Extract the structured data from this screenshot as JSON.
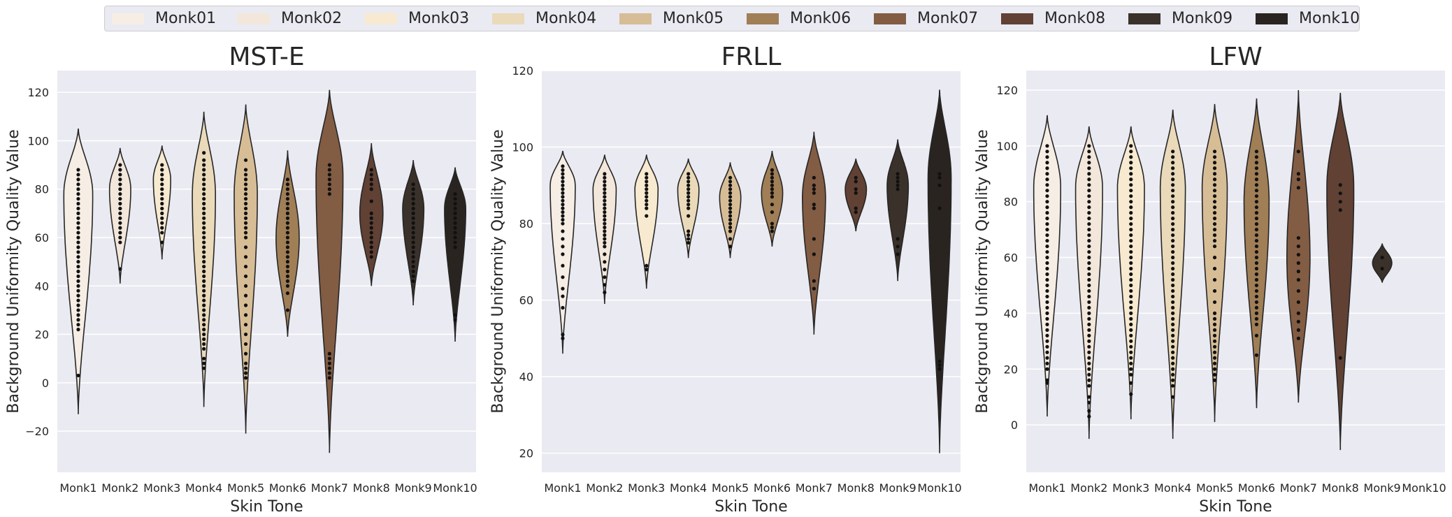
{
  "legend": {
    "items": [
      {
        "label": "Monk01",
        "color": "#f6ede4"
      },
      {
        "label": "Monk02",
        "color": "#f3e7db"
      },
      {
        "label": "Monk03",
        "color": "#f7ead0"
      },
      {
        "label": "Monk04",
        "color": "#eadaba"
      },
      {
        "label": "Monk05",
        "color": "#d7bd96"
      },
      {
        "label": "Monk06",
        "color": "#a07e56"
      },
      {
        "label": "Monk07",
        "color": "#825c43"
      },
      {
        "label": "Monk08",
        "color": "#604134"
      },
      {
        "label": "Monk09",
        "color": "#3a312a"
      },
      {
        "label": "Monk10",
        "color": "#292420"
      }
    ]
  },
  "chart_data": [
    {
      "type": "violin",
      "title": "MST-E",
      "xlabel": "Skin Tone",
      "ylabel": "Background Uniformity Quality Value",
      "categories": [
        "Monk1",
        "Monk2",
        "Monk3",
        "Monk4",
        "Monk5",
        "Monk6",
        "Monk7",
        "Monk8",
        "Monk9",
        "Monk10"
      ],
      "ylim": [
        -37,
        129
      ],
      "yticks": [
        -20,
        0,
        20,
        40,
        60,
        80,
        100,
        120
      ],
      "ytick_labels": [
        "−20",
        "0",
        "20",
        "40",
        "60",
        "80",
        "100",
        "120"
      ],
      "grid": true,
      "violins": [
        {
          "min": -13,
          "max": 105,
          "mode": 78,
          "spread": 0.75,
          "points": [
            3,
            22,
            24,
            26,
            28,
            30,
            32,
            34,
            36,
            38,
            40,
            42,
            44,
            46,
            48,
            50,
            52,
            54,
            56,
            58,
            60,
            62,
            64,
            66,
            68,
            70,
            72,
            74,
            76,
            78,
            80,
            82,
            84,
            86,
            88
          ]
        },
        {
          "min": 41,
          "max": 97,
          "mode": 80,
          "spread": 0.55,
          "points": [
            47,
            58,
            60,
            62,
            64,
            66,
            68,
            70,
            72,
            74,
            76,
            78,
            80,
            82,
            84,
            86,
            88,
            90
          ]
        },
        {
          "min": 51,
          "max": 98,
          "mode": 84,
          "spread": 0.45,
          "points": [
            58,
            62,
            64,
            66,
            68,
            70,
            72,
            74,
            76,
            78,
            80,
            82,
            84,
            86,
            88,
            90
          ]
        },
        {
          "min": -10,
          "max": 112,
          "mode": 78,
          "spread": 0.6,
          "points": [
            6,
            8,
            10,
            14,
            16,
            18,
            20,
            22,
            24,
            26,
            28,
            30,
            32,
            34,
            36,
            38,
            40,
            42,
            44,
            46,
            48,
            50,
            52,
            54,
            56,
            58,
            60,
            62,
            64,
            66,
            68,
            70,
            72,
            74,
            76,
            78,
            80,
            82,
            84,
            86,
            88,
            90,
            92,
            95
          ]
        },
        {
          "min": -21,
          "max": 115,
          "mode": 78,
          "spread": 0.6,
          "points": [
            2,
            4,
            6,
            8,
            12,
            16,
            20,
            24,
            28,
            32,
            36,
            40,
            44,
            48,
            52,
            56,
            60,
            62,
            64,
            66,
            68,
            70,
            72,
            74,
            76,
            78,
            80,
            82,
            84,
            86,
            88,
            92
          ]
        },
        {
          "min": 19,
          "max": 96,
          "mode": 60,
          "spread": 0.6,
          "points": [
            30,
            37,
            40,
            42,
            44,
            46,
            48,
            50,
            52,
            54,
            56,
            58,
            60,
            62,
            64,
            66,
            68,
            70,
            72,
            74,
            76,
            78,
            80,
            82,
            84
          ]
        },
        {
          "min": -29,
          "max": 121,
          "mode": 85,
          "spread": 0.7,
          "points": [
            2,
            4,
            6,
            8,
            10,
            12,
            78,
            80,
            82,
            84,
            86,
            88,
            90
          ]
        },
        {
          "min": 40,
          "max": 99,
          "mode": 70,
          "spread": 0.6,
          "points": [
            52,
            54,
            56,
            58,
            60,
            62,
            64,
            66,
            68,
            70,
            75,
            80,
            82,
            84,
            86,
            88
          ]
        },
        {
          "min": 32,
          "max": 92,
          "mode": 72,
          "spread": 0.55,
          "points": [
            42,
            44,
            46,
            48,
            50,
            52,
            54,
            56,
            58,
            60,
            62,
            64,
            66,
            68,
            70,
            72,
            74,
            76,
            78,
            80,
            82
          ]
        },
        {
          "min": 17,
          "max": 89,
          "mode": 72,
          "spread": 0.55,
          "points": [
            26,
            28,
            56,
            58,
            60,
            62,
            64,
            66,
            68,
            70,
            72,
            74,
            76,
            78
          ]
        }
      ]
    },
    {
      "type": "violin",
      "title": "FRLL",
      "xlabel": "Skin Tone",
      "ylabel": "Background Uniformity Quality Value",
      "categories": [
        "Monk1",
        "Monk2",
        "Monk3",
        "Monk4",
        "Monk5",
        "Monk6",
        "Monk7",
        "Monk8",
        "Monk9",
        "Monk10"
      ],
      "ylim": [
        15,
        120
      ],
      "yticks": [
        20,
        40,
        60,
        80,
        100,
        120
      ],
      "ytick_labels": [
        "20",
        "40",
        "60",
        "80",
        "100",
        "120"
      ],
      "grid": true,
      "violins": [
        {
          "min": 46,
          "max": 99,
          "mode": 90,
          "spread": 0.65,
          "points": [
            50,
            51,
            58,
            61,
            63,
            66,
            69,
            72,
            74,
            76,
            78,
            80,
            81,
            82,
            83,
            84,
            85,
            86,
            87,
            88,
            89,
            90,
            91,
            92,
            93,
            94,
            95
          ]
        },
        {
          "min": 59,
          "max": 98,
          "mode": 89,
          "spread": 0.6,
          "points": [
            62,
            64,
            66,
            68,
            70,
            72,
            74,
            75,
            76,
            77,
            78,
            79,
            80,
            81,
            82,
            83,
            84,
            85,
            86,
            87,
            88,
            89,
            90,
            91,
            92,
            93
          ]
        },
        {
          "min": 63,
          "max": 98,
          "mode": 89,
          "spread": 0.6,
          "points": [
            68,
            69,
            82,
            84,
            85,
            86,
            87,
            88,
            89,
            90,
            91,
            92,
            93
          ]
        },
        {
          "min": 71,
          "max": 97,
          "mode": 89,
          "spread": 0.55,
          "points": [
            75,
            76,
            77,
            78,
            82,
            84,
            85,
            86,
            87,
            88,
            89,
            90,
            91,
            92,
            93
          ]
        },
        {
          "min": 71,
          "max": 96,
          "mode": 87,
          "spread": 0.55,
          "points": [
            74,
            76,
            78,
            79,
            80,
            81,
            82,
            83,
            84,
            85,
            86,
            87,
            88,
            89,
            90,
            91,
            92
          ]
        },
        {
          "min": 74,
          "max": 99,
          "mode": 88,
          "spread": 0.55,
          "points": [
            78,
            79,
            80,
            83,
            85,
            87,
            88,
            89,
            90,
            91,
            92,
            93,
            94
          ]
        },
        {
          "min": 51,
          "max": 104,
          "mode": 87,
          "spread": 0.6,
          "points": [
            63,
            65,
            72,
            76,
            84,
            85,
            88,
            89,
            90,
            92
          ]
        },
        {
          "min": 78,
          "max": 97,
          "mode": 89,
          "spread": 0.55,
          "points": [
            83,
            84,
            88,
            89,
            91,
            92
          ]
        },
        {
          "min": 65,
          "max": 102,
          "mode": 90,
          "spread": 0.55,
          "points": [
            72,
            74,
            76,
            89,
            90,
            91,
            92,
            93
          ]
        },
        {
          "min": 20,
          "max": 115,
          "mode": 92,
          "spread": 0.6,
          "points": [
            42,
            43,
            44,
            84,
            90,
            92,
            93
          ]
        }
      ]
    },
    {
      "type": "violin",
      "title": "LFW",
      "xlabel": "Skin Tone",
      "ylabel": "Background Uniformity Quality Value",
      "categories": [
        "Monk1",
        "Monk2",
        "Monk3",
        "Monk4",
        "Monk5",
        "Monk6",
        "Monk7",
        "Monk8",
        "Monk9",
        "Monk10"
      ],
      "ylim": [
        -17,
        127
      ],
      "yticks": [
        0,
        20,
        40,
        60,
        80,
        100,
        120
      ],
      "ytick_labels": [
        "0",
        "20",
        "40",
        "60",
        "80",
        "100",
        "120"
      ],
      "grid": true,
      "violins": [
        {
          "min": 3,
          "max": 111,
          "mode": 85,
          "spread": 0.7,
          "points": [
            15,
            16,
            20,
            22,
            24,
            26,
            28,
            30,
            32,
            34,
            36,
            38,
            40,
            42,
            44,
            46,
            48,
            50,
            52,
            54,
            56,
            58,
            60,
            62,
            64,
            66,
            68,
            70,
            72,
            74,
            76,
            78,
            80,
            82,
            84,
            86,
            88,
            90,
            92,
            94,
            96,
            98,
            100
          ]
        },
        {
          "min": -5,
          "max": 107,
          "mode": 85,
          "spread": 0.7,
          "points": [
            3,
            5,
            8,
            10,
            14,
            16,
            18,
            20,
            22,
            24,
            26,
            28,
            30,
            32,
            34,
            36,
            38,
            40,
            42,
            44,
            46,
            48,
            50,
            52,
            54,
            56,
            58,
            60,
            62,
            64,
            66,
            68,
            70,
            72,
            74,
            76,
            78,
            80,
            82,
            84,
            86,
            88,
            90,
            92,
            94,
            96,
            98,
            100
          ]
        },
        {
          "min": 2,
          "max": 107,
          "mode": 85,
          "spread": 0.7,
          "points": [
            11,
            15,
            18,
            20,
            22,
            24,
            26,
            28,
            30,
            32,
            34,
            36,
            38,
            40,
            42,
            44,
            46,
            48,
            50,
            52,
            54,
            56,
            58,
            60,
            62,
            64,
            66,
            68,
            70,
            72,
            74,
            76,
            78,
            80,
            82,
            84,
            86,
            88,
            90,
            92,
            94,
            96,
            98,
            100
          ]
        },
        {
          "min": -5,
          "max": 113,
          "mode": 85,
          "spread": 0.65,
          "points": [
            10,
            14,
            16,
            18,
            20,
            22,
            24,
            26,
            28,
            30,
            32,
            34,
            36,
            38,
            40,
            42,
            44,
            46,
            48,
            50,
            52,
            54,
            56,
            58,
            60,
            62,
            64,
            66,
            68,
            70,
            72,
            74,
            76,
            78,
            80,
            82,
            84,
            86,
            88,
            90,
            92,
            94,
            96,
            98
          ]
        },
        {
          "min": 1,
          "max": 115,
          "mode": 85,
          "spread": 0.65,
          "points": [
            16,
            18,
            20,
            22,
            24,
            26,
            28,
            30,
            32,
            34,
            36,
            38,
            40,
            44,
            48,
            52,
            56,
            60,
            64,
            66,
            68,
            70,
            72,
            74,
            76,
            78,
            80,
            82,
            84,
            86,
            88,
            90,
            92,
            94,
            96,
            98
          ]
        },
        {
          "min": 6,
          "max": 117,
          "mode": 80,
          "spread": 0.65,
          "points": [
            25,
            32,
            36,
            38,
            40,
            42,
            44,
            46,
            48,
            50,
            52,
            54,
            56,
            58,
            60,
            62,
            64,
            66,
            68,
            70,
            72,
            74,
            76,
            78,
            80,
            82,
            84,
            86,
            88,
            90,
            92,
            94,
            96,
            98
          ]
        },
        {
          "min": 8,
          "max": 120,
          "mode": 60,
          "spread": 0.6,
          "points": [
            31,
            34,
            37,
            40,
            44,
            48,
            52,
            55,
            58,
            61,
            64,
            67,
            85,
            88,
            90,
            98
          ]
        },
        {
          "min": -9,
          "max": 119,
          "mode": 85,
          "spread": 0.7,
          "points": [
            24,
            77,
            80,
            83,
            86
          ]
        },
        {
          "min": 51,
          "max": 65,
          "mode": 58,
          "spread": 0.5,
          "points": [
            56,
            60
          ]
        },
        {
          "min": null,
          "max": null,
          "mode": null,
          "spread": 0,
          "points": []
        }
      ]
    }
  ]
}
